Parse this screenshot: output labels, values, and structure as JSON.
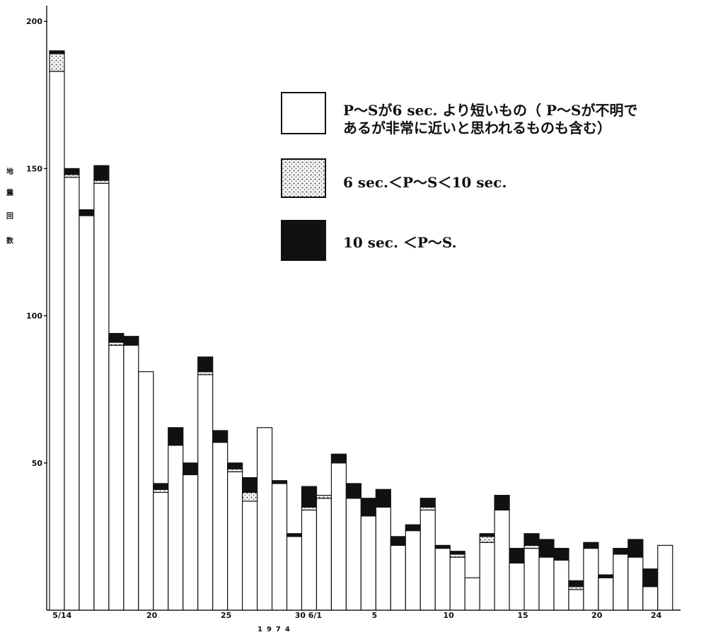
{
  "chart_data": {
    "type": "bar",
    "stacked": true,
    "ylabel": "地震回数",
    "ylim": [
      0,
      200
    ],
    "yticks": [
      50,
      100,
      150,
      200
    ],
    "x_axis_year": "1974",
    "x_tick_labels": [
      {
        "index": 0,
        "label": "5/14"
      },
      {
        "index": 6,
        "label": "20"
      },
      {
        "index": 11,
        "label": "25"
      },
      {
        "index": 16,
        "label": "30"
      },
      {
        "index": 17,
        "label": "6/1"
      },
      {
        "index": 21,
        "label": "5"
      },
      {
        "index": 26,
        "label": "10"
      },
      {
        "index": 31,
        "label": "15"
      },
      {
        "index": 36,
        "label": "20"
      },
      {
        "index": 40,
        "label": "24"
      }
    ],
    "legend": [
      {
        "pattern": "blank",
        "label_line1": "P～Sが6 sec. より短いもの（ P～Sが不明で",
        "label_line2": "あるが非常に近いと思われるものも含む）"
      },
      {
        "pattern": "dotted",
        "label_line1": "6 sec.＜P～S＜10 sec.",
        "label_line2": ""
      },
      {
        "pattern": "solid",
        "label_line1": "10 sec. ＜P～S.",
        "label_line2": ""
      }
    ],
    "series": [
      {
        "pattern": "blank",
        "values": [
          183,
          147,
          134,
          145,
          90,
          90,
          81,
          40,
          56,
          46,
          80,
          57,
          47,
          37,
          62,
          43,
          25,
          34,
          38,
          50,
          38,
          32,
          35,
          22,
          27,
          34,
          21,
          18,
          11,
          23,
          34,
          16,
          21,
          18,
          17,
          7,
          21,
          11,
          19,
          18,
          8,
          22
        ]
      },
      {
        "pattern": "dotted",
        "values": [
          6,
          1,
          0,
          1,
          1,
          0,
          0,
          1,
          0,
          0,
          1,
          0,
          1,
          3,
          0,
          0,
          0,
          1,
          1,
          0,
          0,
          0,
          0,
          0,
          0,
          1,
          0,
          1,
          0,
          2,
          0,
          0,
          1,
          0,
          0,
          1,
          0,
          0,
          0,
          0,
          0,
          0
        ]
      },
      {
        "pattern": "solid",
        "values": [
          1,
          2,
          2,
          5,
          3,
          3,
          0,
          2,
          6,
          4,
          5,
          4,
          2,
          5,
          0,
          1,
          1,
          7,
          0,
          3,
          5,
          6,
          6,
          3,
          2,
          3,
          1,
          1,
          0,
          1,
          5,
          5,
          4,
          6,
          4,
          2,
          2,
          1,
          2,
          6,
          6,
          0
        ]
      }
    ]
  }
}
